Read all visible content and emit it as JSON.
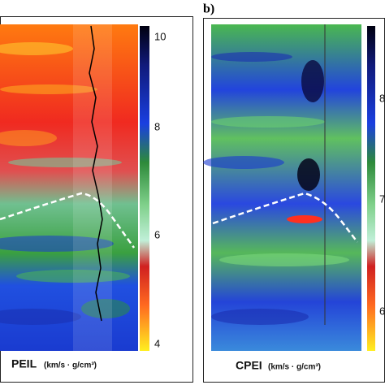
{
  "panels": [
    {
      "caption_label": "PEIL",
      "caption_units": "(km/s · g/cm³)",
      "colorbar_ticks": [
        "10",
        "8",
        "6",
        "4"
      ]
    },
    {
      "label": "b)",
      "caption_label": "CPEI",
      "caption_units": "(km/s · g/cm³)",
      "colorbar_ticks": [
        "8",
        "7",
        "6"
      ]
    }
  ]
}
